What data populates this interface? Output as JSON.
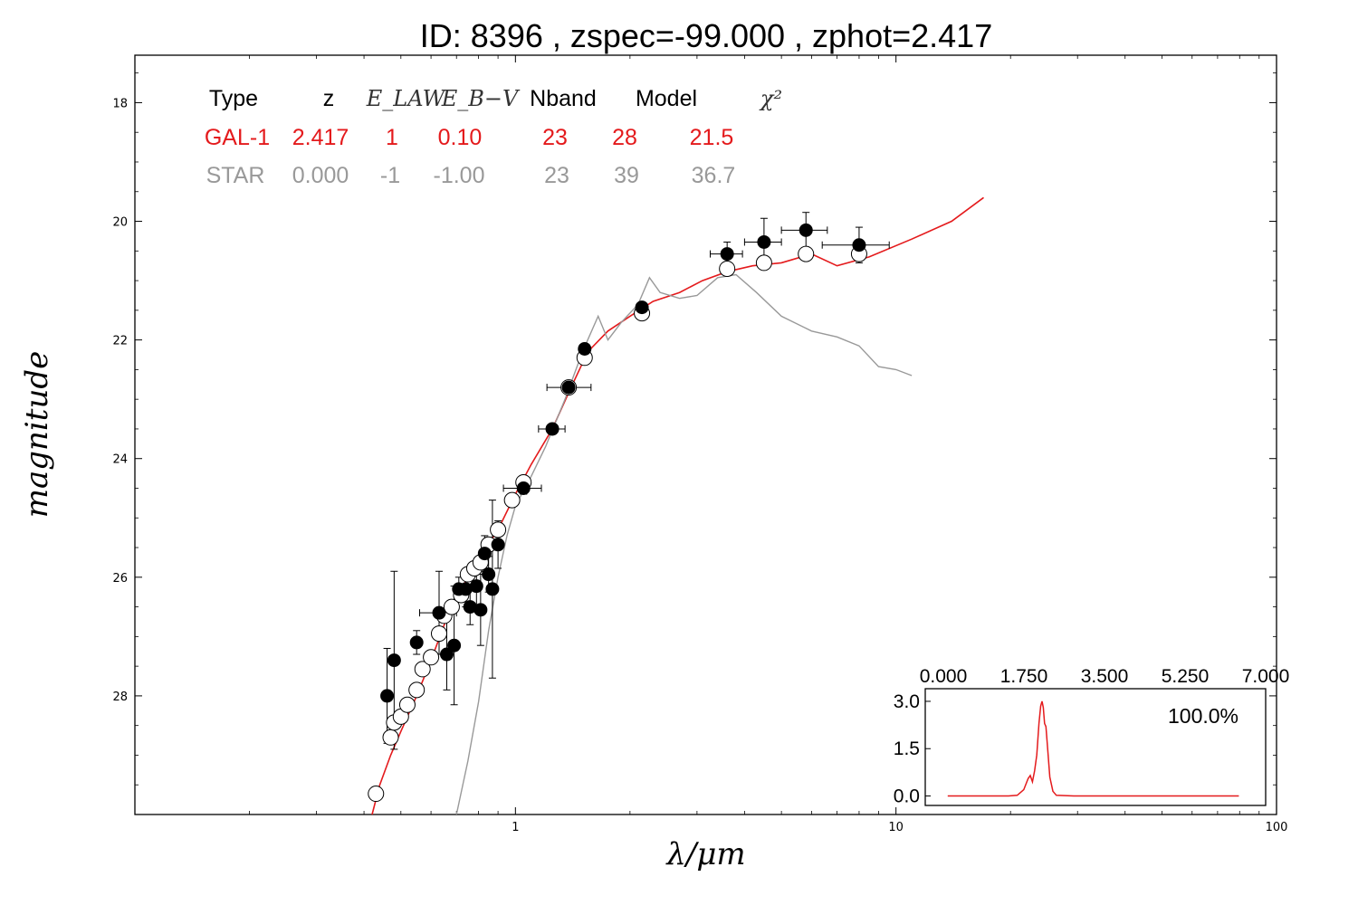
{
  "title": "ID:  8396  , zspec=-99.000 , zphot=2.417",
  "colors": {
    "galaxy": "#e41a1c",
    "star": "#999999",
    "errorbar": "#000000"
  },
  "chart_data": [
    {
      "type": "scatter",
      "xlabel": "λ/μm",
      "ylabel": "magnitude",
      "xscale": "log",
      "xlim": [
        0.1,
        100
      ],
      "ylim": [
        30.0,
        17.2
      ],
      "y_inverted": true,
      "x_tick_labels": [
        "1",
        "10",
        "100"
      ],
      "y_tick_labels": [
        "18",
        "20",
        "22",
        "24",
        "26",
        "28"
      ],
      "grid": false,
      "fit_table": {
        "headers": [
          "Type",
          "z",
          "E_LAW",
          "E_B−V",
          "Nband",
          "Model",
          "χ²"
        ],
        "rows": [
          {
            "name": "galaxy",
            "values": [
              "GAL-1",
              "2.417",
              "1",
              "0.10",
              "23",
              "28",
              "21.5"
            ]
          },
          {
            "name": "star",
            "values": [
              "STAR",
              "0.000",
              "-1",
              "-1.00",
              "23",
              "39",
              "36.7"
            ]
          }
        ]
      },
      "series": [
        {
          "name": "observed",
          "style": "filled-circle-errorbar",
          "points": [
            {
              "x": 0.46,
              "y": 28.0,
              "yerr": 0.8
            },
            {
              "x": 0.48,
              "y": 27.4,
              "yerr": 1.5
            },
            {
              "x": 0.55,
              "y": 27.1,
              "yerr": 0.2
            },
            {
              "x": 0.63,
              "y": 26.6,
              "yerr": 0.7,
              "xerr_lo": 0.07,
              "xerr_hi": 0.07
            },
            {
              "x": 0.66,
              "y": 27.3,
              "yerr": 0.6
            },
            {
              "x": 0.69,
              "y": 27.15,
              "yerr": 1.0
            },
            {
              "x": 0.71,
              "y": 26.2,
              "yerr": 0.2
            },
            {
              "x": 0.74,
              "y": 26.2,
              "yerr": 0.3
            },
            {
              "x": 0.76,
              "y": 26.5,
              "yerr": 0.3
            },
            {
              "x": 0.79,
              "y": 26.15,
              "yerr": 0.4
            },
            {
              "x": 0.81,
              "y": 26.55,
              "yerr": 0.6
            },
            {
              "x": 0.83,
              "y": 25.6,
              "yerr": 0.3
            },
            {
              "x": 0.85,
              "y": 25.95,
              "yerr": 0.3
            },
            {
              "x": 0.87,
              "y": 26.2,
              "yerr": 1.5
            },
            {
              "x": 0.9,
              "y": 25.45,
              "yerr": 0.4
            },
            {
              "x": 1.05,
              "y": 24.5,
              "yerr": 0.1,
              "xerr_lo": 0.12,
              "xerr_hi": 0.12
            },
            {
              "x": 1.25,
              "y": 23.5,
              "yerr": 0.05,
              "xerr_lo": 0.1,
              "xerr_hi": 0.1
            },
            {
              "x": 1.38,
              "y": 22.8,
              "yerr": 0.1,
              "xerr_lo": 0.17,
              "xerr_hi": 0.2
            },
            {
              "x": 1.52,
              "y": 22.15,
              "yerr": 0.05
            },
            {
              "x": 2.15,
              "y": 21.45,
              "yerr": 0.05
            },
            {
              "x": 3.6,
              "y": 20.55,
              "yerr": 0.2,
              "xerr_lo": 0.35,
              "xerr_hi": 0.35
            },
            {
              "x": 4.5,
              "y": 20.35,
              "yerr": 0.4,
              "xerr_lo": 0.5,
              "xerr_hi": 0.5
            },
            {
              "x": 5.8,
              "y": 20.15,
              "yerr": 0.3,
              "xerr_lo": 0.8,
              "xerr_hi": 0.8
            },
            {
              "x": 8.0,
              "y": 20.4,
              "yerr": 0.3,
              "xerr_lo": 1.6,
              "xerr_hi": 1.6
            }
          ]
        },
        {
          "name": "model-magnitudes",
          "style": "open-circle",
          "points": [
            {
              "x": 0.43,
              "y": 29.65
            },
            {
              "x": 0.47,
              "y": 28.7
            },
            {
              "x": 0.48,
              "y": 28.45
            },
            {
              "x": 0.5,
              "y": 28.35
            },
            {
              "x": 0.52,
              "y": 28.15
            },
            {
              "x": 0.55,
              "y": 27.9
            },
            {
              "x": 0.57,
              "y": 27.55
            },
            {
              "x": 0.6,
              "y": 27.35
            },
            {
              "x": 0.63,
              "y": 26.95
            },
            {
              "x": 0.65,
              "y": 26.65
            },
            {
              "x": 0.68,
              "y": 26.5
            },
            {
              "x": 0.72,
              "y": 26.3
            },
            {
              "x": 0.75,
              "y": 25.95
            },
            {
              "x": 0.78,
              "y": 25.85
            },
            {
              "x": 0.81,
              "y": 25.75
            },
            {
              "x": 0.85,
              "y": 25.45
            },
            {
              "x": 0.9,
              "y": 25.2
            },
            {
              "x": 0.98,
              "y": 24.7
            },
            {
              "x": 1.05,
              "y": 24.4
            },
            {
              "x": 1.38,
              "y": 22.8
            },
            {
              "x": 1.52,
              "y": 22.3
            },
            {
              "x": 2.15,
              "y": 21.55
            },
            {
              "x": 3.6,
              "y": 20.8
            },
            {
              "x": 4.5,
              "y": 20.7
            },
            {
              "x": 5.8,
              "y": 20.55
            },
            {
              "x": 8.0,
              "y": 20.55
            }
          ]
        },
        {
          "name": "GAL-1",
          "style": "line",
          "color": "#e41a1c",
          "points": [
            {
              "x": 0.42,
              "y": 30.0
            },
            {
              "x": 0.44,
              "y": 29.5
            },
            {
              "x": 0.47,
              "y": 29.0
            },
            {
              "x": 0.5,
              "y": 28.6
            },
            {
              "x": 0.55,
              "y": 28.0
            },
            {
              "x": 0.6,
              "y": 27.4
            },
            {
              "x": 0.65,
              "y": 26.8
            },
            {
              "x": 0.7,
              "y": 26.35
            },
            {
              "x": 0.75,
              "y": 26.0
            },
            {
              "x": 0.8,
              "y": 25.7
            },
            {
              "x": 0.9,
              "y": 25.2
            },
            {
              "x": 1.0,
              "y": 24.6
            },
            {
              "x": 1.1,
              "y": 24.1
            },
            {
              "x": 1.25,
              "y": 23.5
            },
            {
              "x": 1.4,
              "y": 22.8
            },
            {
              "x": 1.55,
              "y": 22.2
            },
            {
              "x": 1.75,
              "y": 21.85
            },
            {
              "x": 2.0,
              "y": 21.6
            },
            {
              "x": 2.3,
              "y": 21.35
            },
            {
              "x": 2.7,
              "y": 21.2
            },
            {
              "x": 3.1,
              "y": 21.0
            },
            {
              "x": 3.6,
              "y": 20.85
            },
            {
              "x": 4.2,
              "y": 20.75
            },
            {
              "x": 5.0,
              "y": 20.7
            },
            {
              "x": 6.0,
              "y": 20.55
            },
            {
              "x": 7.0,
              "y": 20.75
            },
            {
              "x": 8.5,
              "y": 20.6
            },
            {
              "x": 11.0,
              "y": 20.3
            },
            {
              "x": 14.0,
              "y": 20.0
            },
            {
              "x": 17.0,
              "y": 19.6
            }
          ]
        },
        {
          "name": "STAR",
          "style": "line",
          "color": "#999999",
          "points": [
            {
              "x": 0.7,
              "y": 30.0
            },
            {
              "x": 0.75,
              "y": 29.1
            },
            {
              "x": 0.8,
              "y": 28.1
            },
            {
              "x": 0.85,
              "y": 26.9
            },
            {
              "x": 0.9,
              "y": 26.0
            },
            {
              "x": 0.95,
              "y": 25.3
            },
            {
              "x": 1.0,
              "y": 24.8
            },
            {
              "x": 1.1,
              "y": 24.3
            },
            {
              "x": 1.2,
              "y": 23.8
            },
            {
              "x": 1.35,
              "y": 23.0
            },
            {
              "x": 1.5,
              "y": 22.2
            },
            {
              "x": 1.65,
              "y": 21.6
            },
            {
              "x": 1.75,
              "y": 22.0
            },
            {
              "x": 1.9,
              "y": 21.7
            },
            {
              "x": 2.1,
              "y": 21.4
            },
            {
              "x": 2.25,
              "y": 20.95
            },
            {
              "x": 2.4,
              "y": 21.2
            },
            {
              "x": 2.7,
              "y": 21.3
            },
            {
              "x": 3.0,
              "y": 21.25
            },
            {
              "x": 3.4,
              "y": 20.95
            },
            {
              "x": 3.8,
              "y": 20.9
            },
            {
              "x": 4.3,
              "y": 21.2
            },
            {
              "x": 5.0,
              "y": 21.6
            },
            {
              "x": 6.0,
              "y": 21.85
            },
            {
              "x": 7.0,
              "y": 21.95
            },
            {
              "x": 8.0,
              "y": 22.1
            },
            {
              "x": 9.0,
              "y": 22.45
            },
            {
              "x": 10.0,
              "y": 22.5
            },
            {
              "x": 11.0,
              "y": 22.6
            }
          ]
        }
      ]
    },
    {
      "type": "line",
      "xlim": [
        0.0,
        7.0
      ],
      "ylim": [
        -0.3,
        3.4
      ],
      "x_tick_labels": [
        "0.000",
        "1.750",
        "3.500",
        "5.250",
        "7.000"
      ],
      "y_tick_labels": [
        "0.0",
        "1.5",
        "3.0"
      ],
      "annotation": "100.0%",
      "series": [
        {
          "name": "pdz",
          "color": "#e41a1c",
          "points": [
            {
              "x": 0.1,
              "y": 0.0
            },
            {
              "x": 1.5,
              "y": 0.0
            },
            {
              "x": 1.7,
              "y": 0.02
            },
            {
              "x": 1.85,
              "y": 0.2
            },
            {
              "x": 1.95,
              "y": 0.55
            },
            {
              "x": 2.0,
              "y": 0.65
            },
            {
              "x": 2.05,
              "y": 0.45
            },
            {
              "x": 2.1,
              "y": 0.8
            },
            {
              "x": 2.15,
              "y": 1.3
            },
            {
              "x": 2.2,
              "y": 2.3
            },
            {
              "x": 2.24,
              "y": 2.85
            },
            {
              "x": 2.27,
              "y": 3.0
            },
            {
              "x": 2.3,
              "y": 2.8
            },
            {
              "x": 2.33,
              "y": 2.3
            },
            {
              "x": 2.36,
              "y": 2.2
            },
            {
              "x": 2.4,
              "y": 1.5
            },
            {
              "x": 2.45,
              "y": 0.6
            },
            {
              "x": 2.52,
              "y": 0.15
            },
            {
              "x": 2.6,
              "y": 0.02
            },
            {
              "x": 3.0,
              "y": 0.0
            },
            {
              "x": 6.8,
              "y": 0.0
            }
          ]
        }
      ]
    }
  ]
}
